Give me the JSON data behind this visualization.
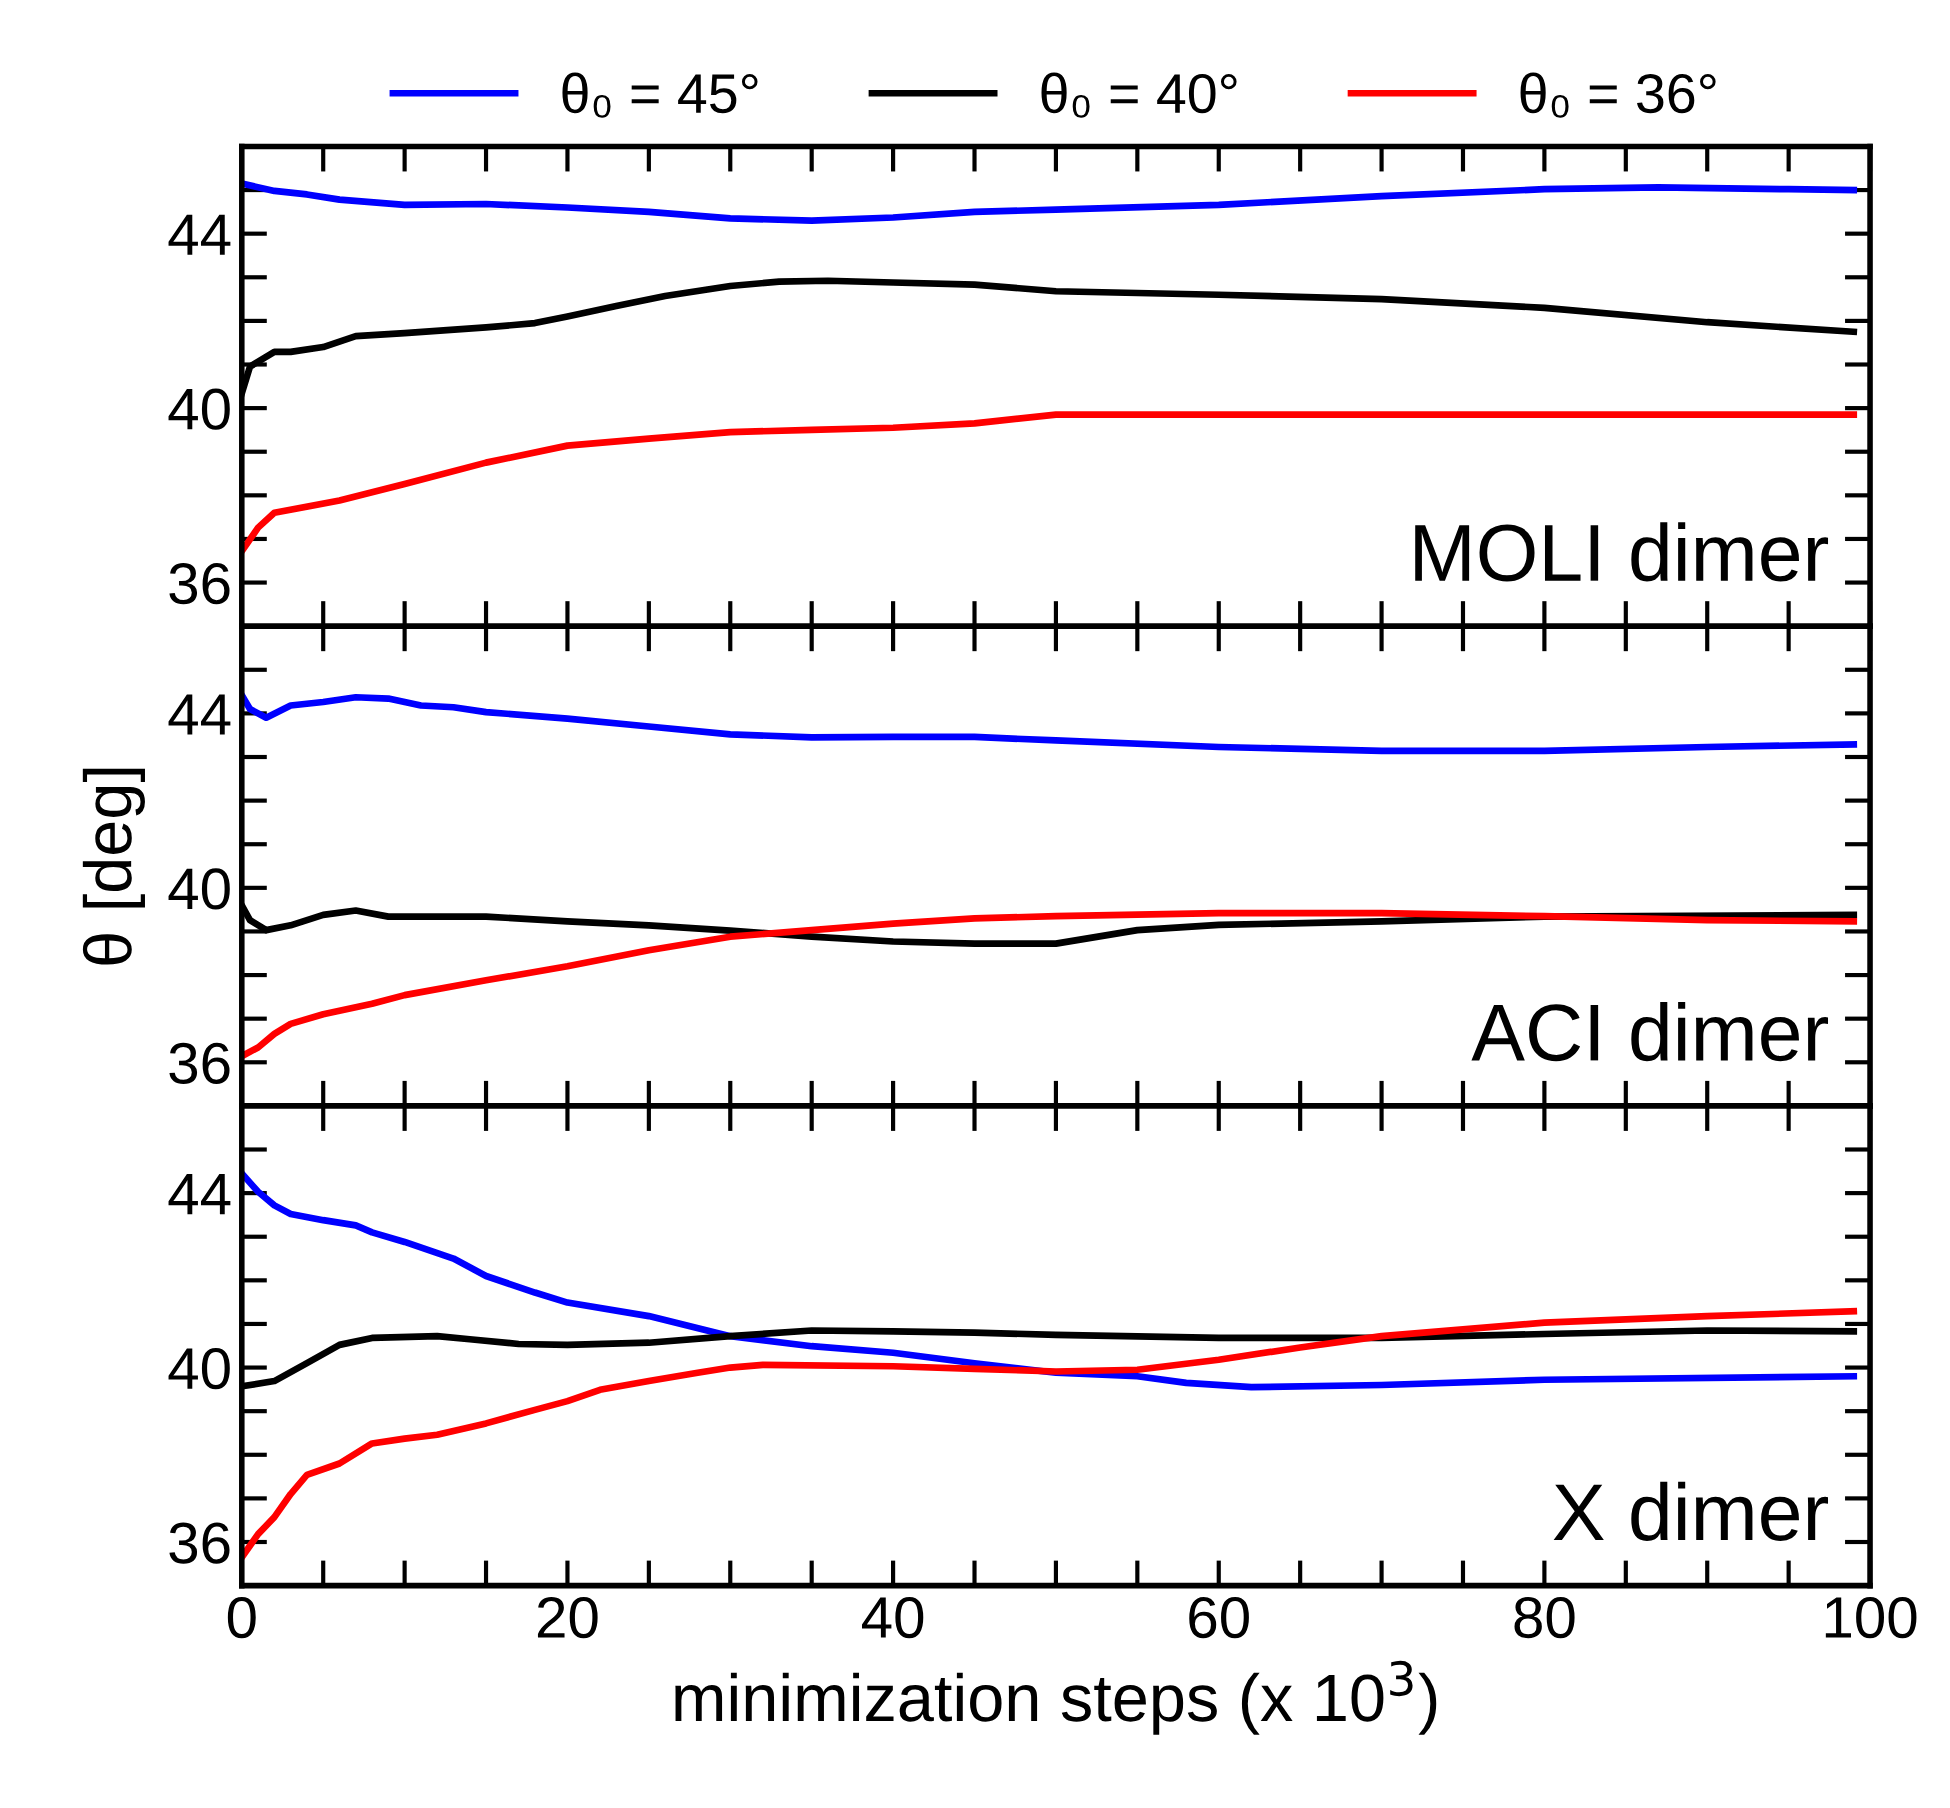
{
  "chart_data": [
    {
      "type": "line",
      "legend": "top",
      "tick_labels": "y",
      "annotations": [
        "MOLI dimer"
      ],
      "xlim": [
        0,
        100
      ],
      "ylim": [
        35,
        46
      ],
      "xticks": [
        0,
        {
          "value": 5,
          "label": null
        },
        {
          "value": 10,
          "label": null
        },
        {
          "value": 15,
          "label": null
        },
        {
          "value": 20,
          "label": null
        },
        {
          "value": 25,
          "label": null
        },
        {
          "value": 30,
          "label": null
        },
        {
          "value": 35,
          "label": null
        },
        {
          "value": 40,
          "label": null
        },
        {
          "value": 45,
          "label": null
        },
        {
          "value": 50,
          "label": null
        },
        {
          "value": 55,
          "label": null
        },
        {
          "value": 60,
          "label": null
        },
        {
          "value": 65,
          "label": null
        },
        {
          "value": 70,
          "label": null
        },
        {
          "value": 75,
          "label": null
        },
        {
          "value": 80,
          "label": null
        },
        {
          "value": 85,
          "label": null
        },
        {
          "value": 90,
          "label": null
        },
        {
          "value": 95,
          "label": null
        },
        {
          "value": 100,
          "label": null
        }
      ],
      "yticks": [
        36,
        {
          "value": 37,
          "label": null
        },
        {
          "value": 38,
          "label": null
        },
        {
          "value": 39,
          "label": null
        },
        40,
        {
          "value": 41,
          "label": null
        },
        {
          "value": 42,
          "label": null
        },
        {
          "value": 43,
          "label": null
        },
        44,
        {
          "value": 45,
          "label": null
        }
      ],
      "series": [
        {
          "name": "θ₀ = 45°",
          "color": "#0000ff",
          "x": [
            0,
            2,
            4,
            6,
            10,
            15,
            20,
            25,
            30,
            35,
            40,
            45,
            50,
            60,
            70,
            80,
            87,
            95,
            99
          ],
          "values": [
            45.15,
            44.98,
            44.9,
            44.78,
            44.66,
            44.68,
            44.6,
            44.5,
            44.35,
            44.3,
            44.37,
            44.5,
            44.55,
            44.66,
            44.86,
            45.02,
            45.06,
            45.02,
            45.0
          ]
        },
        {
          "name": "θ₀ = 40°",
          "color": "#000000",
          "x": [
            0,
            0.5,
            2,
            3,
            5,
            7,
            10,
            15,
            18,
            20,
            23,
            26,
            30,
            33,
            36,
            40,
            45,
            50,
            60,
            70,
            80,
            90,
            99
          ],
          "values": [
            40.34,
            40.95,
            41.29,
            41.29,
            41.4,
            41.65,
            41.72,
            41.85,
            41.95,
            42.1,
            42.34,
            42.57,
            42.8,
            42.9,
            42.92,
            42.88,
            42.83,
            42.68,
            42.6,
            42.5,
            42.3,
            41.97,
            41.75
          ]
        },
        {
          "name": "θ₀ = 36°",
          "color": "#ff0000",
          "x": [
            0,
            1,
            2,
            6,
            10,
            15,
            20,
            25,
            30,
            35,
            40,
            45,
            50,
            60,
            70,
            80,
            90,
            99
          ],
          "values": [
            36.72,
            37.26,
            37.6,
            37.88,
            38.26,
            38.75,
            39.14,
            39.3,
            39.45,
            39.5,
            39.55,
            39.65,
            39.85,
            39.85,
            39.85,
            39.85,
            39.85,
            39.85
          ]
        }
      ]
    },
    {
      "type": "line",
      "legend": false,
      "tick_labels": "y",
      "ylabel": "θ [deg]",
      "annotations": [
        "ACI dimer"
      ],
      "xlim": [
        0,
        100
      ],
      "ylim": [
        35,
        46
      ],
      "xticks": [
        0,
        {
          "value": 5,
          "label": null
        },
        {
          "value": 10,
          "label": null
        },
        {
          "value": 15,
          "label": null
        },
        {
          "value": 20,
          "label": null
        },
        {
          "value": 25,
          "label": null
        },
        {
          "value": 30,
          "label": null
        },
        {
          "value": 35,
          "label": null
        },
        {
          "value": 40,
          "label": null
        },
        {
          "value": 45,
          "label": null
        },
        {
          "value": 50,
          "label": null
        },
        {
          "value": 55,
          "label": null
        },
        {
          "value": 60,
          "label": null
        },
        {
          "value": 65,
          "label": null
        },
        {
          "value": 70,
          "label": null
        },
        {
          "value": 75,
          "label": null
        },
        {
          "value": 80,
          "label": null
        },
        {
          "value": 85,
          "label": null
        },
        {
          "value": 90,
          "label": null
        },
        {
          "value": 95,
          "label": null
        },
        {
          "value": 100,
          "label": null
        }
      ],
      "yticks": [
        36,
        {
          "value": 37,
          "label": null
        },
        {
          "value": 38,
          "label": null
        },
        {
          "value": 39,
          "label": null
        },
        40,
        {
          "value": 41,
          "label": null
        },
        {
          "value": 42,
          "label": null
        },
        {
          "value": 43,
          "label": null
        },
        44,
        {
          "value": 45,
          "label": null
        }
      ],
      "series": [
        {
          "color": "#0000ff",
          "x": [
            0,
            0.5,
            1.5,
            3,
            5,
            7,
            9,
            11,
            13,
            15,
            20,
            25,
            30,
            35,
            40,
            45,
            50,
            60,
            70,
            80,
            90,
            99
          ],
          "values": [
            44.42,
            44.1,
            43.9,
            44.18,
            44.26,
            44.37,
            44.34,
            44.18,
            44.14,
            44.03,
            43.88,
            43.7,
            43.52,
            43.45,
            43.46,
            43.46,
            43.38,
            43.23,
            43.14,
            43.14,
            43.23,
            43.29
          ]
        },
        {
          "color": "#000000",
          "x": [
            0,
            0.5,
            1.5,
            3,
            5,
            7,
            9,
            15,
            20,
            25,
            30,
            35,
            40,
            45,
            50,
            55,
            60,
            70,
            80,
            99
          ],
          "values": [
            39.6,
            39.26,
            39.03,
            39.14,
            39.38,
            39.48,
            39.34,
            39.34,
            39.23,
            39.14,
            39.02,
            38.88,
            38.77,
            38.72,
            38.72,
            39.03,
            39.15,
            39.23,
            39.34,
            39.38
          ]
        },
        {
          "color": "#ff0000",
          "x": [
            0,
            1,
            2,
            3,
            5,
            8,
            10,
            15,
            20,
            25,
            30,
            35,
            40,
            45,
            50,
            60,
            70,
            80,
            90,
            99
          ],
          "values": [
            36.14,
            36.34,
            36.65,
            36.88,
            37.1,
            37.34,
            37.54,
            37.88,
            38.2,
            38.57,
            38.88,
            39.03,
            39.18,
            39.3,
            39.35,
            39.42,
            39.42,
            39.35,
            39.26,
            39.23
          ]
        }
      ]
    },
    {
      "type": "line",
      "legend": false,
      "xlabel": "minimization steps (x 10$^{3}$)",
      "annotations": [
        "X dimer"
      ],
      "xlim": [
        0,
        100
      ],
      "ylim": [
        35,
        46
      ],
      "xticks": [
        0,
        {
          "value": 5,
          "label": null
        },
        {
          "value": 10,
          "label": null
        },
        {
          "value": 15,
          "label": null
        },
        20,
        {
          "value": 25,
          "label": null
        },
        {
          "value": 30,
          "label": null
        },
        {
          "value": 35,
          "label": null
        },
        40,
        {
          "value": 45,
          "label": null
        },
        {
          "value": 50,
          "label": null
        },
        {
          "value": 55,
          "label": null
        },
        60,
        {
          "value": 65,
          "label": null
        },
        {
          "value": 70,
          "label": null
        },
        {
          "value": 75,
          "label": null
        },
        80,
        {
          "value": 85,
          "label": null
        },
        {
          "value": 90,
          "label": null
        },
        {
          "value": 95,
          "label": null
        },
        100
      ],
      "yticks": [
        36,
        {
          "value": 37,
          "label": null
        },
        {
          "value": 38,
          "label": null
        },
        {
          "value": 39,
          "label": null
        },
        40,
        {
          "value": 41,
          "label": null
        },
        {
          "value": 42,
          "label": null
        },
        {
          "value": 43,
          "label": null
        },
        44,
        {
          "value": 45,
          "label": null
        }
      ],
      "series": [
        {
          "color": "#0000ff",
          "x": [
            0,
            1,
            2,
            3,
            5,
            7,
            8,
            10,
            13,
            15,
            18,
            20,
            25,
            30,
            35,
            40,
            45,
            50,
            55,
            58,
            62,
            70,
            80,
            99
          ],
          "values": [
            44.45,
            44.03,
            43.72,
            43.52,
            43.38,
            43.26,
            43.1,
            42.88,
            42.5,
            42.1,
            41.72,
            41.49,
            41.18,
            40.72,
            40.49,
            40.34,
            40.1,
            39.88,
            39.8,
            39.65,
            39.55,
            39.6,
            39.72,
            39.8
          ]
        },
        {
          "color": "#000000",
          "x": [
            0,
            2,
            4,
            6,
            8,
            12,
            14,
            17,
            20,
            25,
            30,
            35,
            40,
            45,
            50,
            60,
            70,
            80,
            90,
            99
          ],
          "values": [
            39.57,
            39.69,
            40.1,
            40.52,
            40.68,
            40.72,
            40.65,
            40.54,
            40.52,
            40.57,
            40.72,
            40.85,
            40.83,
            40.8,
            40.75,
            40.68,
            40.68,
            40.77,
            40.85,
            40.83
          ]
        },
        {
          "color": "#ff0000",
          "x": [
            0,
            1,
            2,
            3,
            4,
            6,
            8,
            10,
            12,
            15,
            18,
            20,
            22,
            25,
            28,
            30,
            32,
            40,
            45,
            50,
            55,
            60,
            65,
            70,
            80,
            90,
            99
          ],
          "values": [
            35.65,
            36.18,
            36.57,
            37.1,
            37.54,
            37.8,
            38.26,
            38.37,
            38.46,
            38.72,
            39.03,
            39.23,
            39.49,
            39.69,
            39.88,
            40.0,
            40.06,
            40.03,
            39.97,
            39.91,
            39.95,
            40.18,
            40.46,
            40.72,
            41.03,
            41.18,
            41.29
          ]
        }
      ]
    }
  ]
}
